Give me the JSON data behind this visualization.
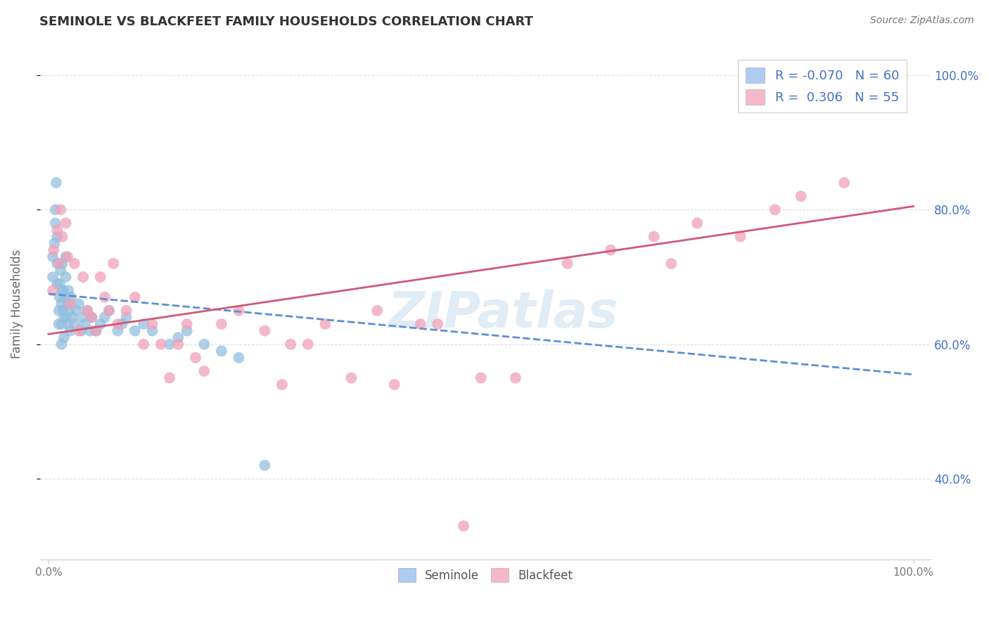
{
  "title": "SEMINOLE VS BLACKFEET FAMILY HOUSEHOLDS CORRELATION CHART",
  "source": "Source: ZipAtlas.com",
  "ylabel": "Family Households",
  "watermark": "ZIPatlas",
  "legend_seminole_R": -0.07,
  "legend_seminole_N": 60,
  "legend_blackfeet_R": 0.306,
  "legend_blackfeet_N": 55,
  "seminole_color": "#92c0e0",
  "blackfeet_color": "#f0a0b8",
  "seminole_line_color": "#5b8ed6",
  "blackfeet_line_color": "#d05878",
  "legend_seminole_patch": "#aeccf0",
  "legend_blackfeet_patch": "#f4b8c8",
  "seminole_scatter": {
    "x": [
      0.005,
      0.005,
      0.007,
      0.008,
      0.008,
      0.009,
      0.01,
      0.01,
      0.01,
      0.012,
      0.012,
      0.013,
      0.013,
      0.014,
      0.015,
      0.015,
      0.015,
      0.016,
      0.016,
      0.017,
      0.017,
      0.018,
      0.018,
      0.019,
      0.02,
      0.02,
      0.021,
      0.022,
      0.022,
      0.023,
      0.024,
      0.025,
      0.026,
      0.028,
      0.03,
      0.032,
      0.035,
      0.038,
      0.04,
      0.042,
      0.045,
      0.048,
      0.05,
      0.055,
      0.06,
      0.065,
      0.07,
      0.08,
      0.085,
      0.09,
      0.1,
      0.11,
      0.12,
      0.14,
      0.15,
      0.16,
      0.18,
      0.2,
      0.22,
      0.25
    ],
    "y": [
      0.7,
      0.73,
      0.75,
      0.78,
      0.8,
      0.84,
      0.69,
      0.72,
      0.76,
      0.63,
      0.65,
      0.67,
      0.69,
      0.71,
      0.6,
      0.63,
      0.66,
      0.68,
      0.72,
      0.65,
      0.68,
      0.61,
      0.64,
      0.67,
      0.7,
      0.73,
      0.64,
      0.63,
      0.66,
      0.68,
      0.65,
      0.62,
      0.67,
      0.64,
      0.63,
      0.65,
      0.66,
      0.62,
      0.64,
      0.63,
      0.65,
      0.62,
      0.64,
      0.62,
      0.63,
      0.64,
      0.65,
      0.62,
      0.63,
      0.64,
      0.62,
      0.63,
      0.62,
      0.6,
      0.61,
      0.62,
      0.6,
      0.59,
      0.58,
      0.42
    ]
  },
  "blackfeet_scatter": {
    "x": [
      0.005,
      0.006,
      0.01,
      0.012,
      0.014,
      0.016,
      0.02,
      0.022,
      0.025,
      0.03,
      0.035,
      0.04,
      0.045,
      0.05,
      0.055,
      0.06,
      0.065,
      0.07,
      0.075,
      0.08,
      0.09,
      0.1,
      0.11,
      0.12,
      0.13,
      0.14,
      0.15,
      0.16,
      0.17,
      0.18,
      0.2,
      0.22,
      0.25,
      0.27,
      0.28,
      0.3,
      0.32,
      0.35,
      0.38,
      0.4,
      0.43,
      0.45,
      0.48,
      0.5,
      0.54,
      0.6,
      0.65,
      0.7,
      0.72,
      0.75,
      0.8,
      0.84,
      0.87,
      0.92,
      0.98
    ],
    "y": [
      0.68,
      0.74,
      0.77,
      0.72,
      0.8,
      0.76,
      0.78,
      0.73,
      0.66,
      0.72,
      0.62,
      0.7,
      0.65,
      0.64,
      0.62,
      0.7,
      0.67,
      0.65,
      0.72,
      0.63,
      0.65,
      0.67,
      0.6,
      0.63,
      0.6,
      0.55,
      0.6,
      0.63,
      0.58,
      0.56,
      0.63,
      0.65,
      0.62,
      0.54,
      0.6,
      0.6,
      0.63,
      0.55,
      0.65,
      0.54,
      0.63,
      0.63,
      0.33,
      0.55,
      0.55,
      0.72,
      0.74,
      0.76,
      0.72,
      0.78,
      0.76,
      0.8,
      0.82,
      0.84,
      0.98
    ]
  },
  "ylim": [
    0.28,
    1.04
  ],
  "xlim": [
    -0.01,
    1.02
  ],
  "yticks": [
    0.4,
    0.6,
    0.8,
    1.0
  ],
  "ytick_labels": [
    "40.0%",
    "60.0%",
    "80.0%",
    "100.0%"
  ],
  "xtick_labels": [
    "0.0%",
    "100.0%"
  ],
  "xtick_positions": [
    0.0,
    1.0
  ],
  "grid_color": "#dddddd",
  "text_color_blue": "#4472c4",
  "title_color": "#333333",
  "source_color": "#777777"
}
